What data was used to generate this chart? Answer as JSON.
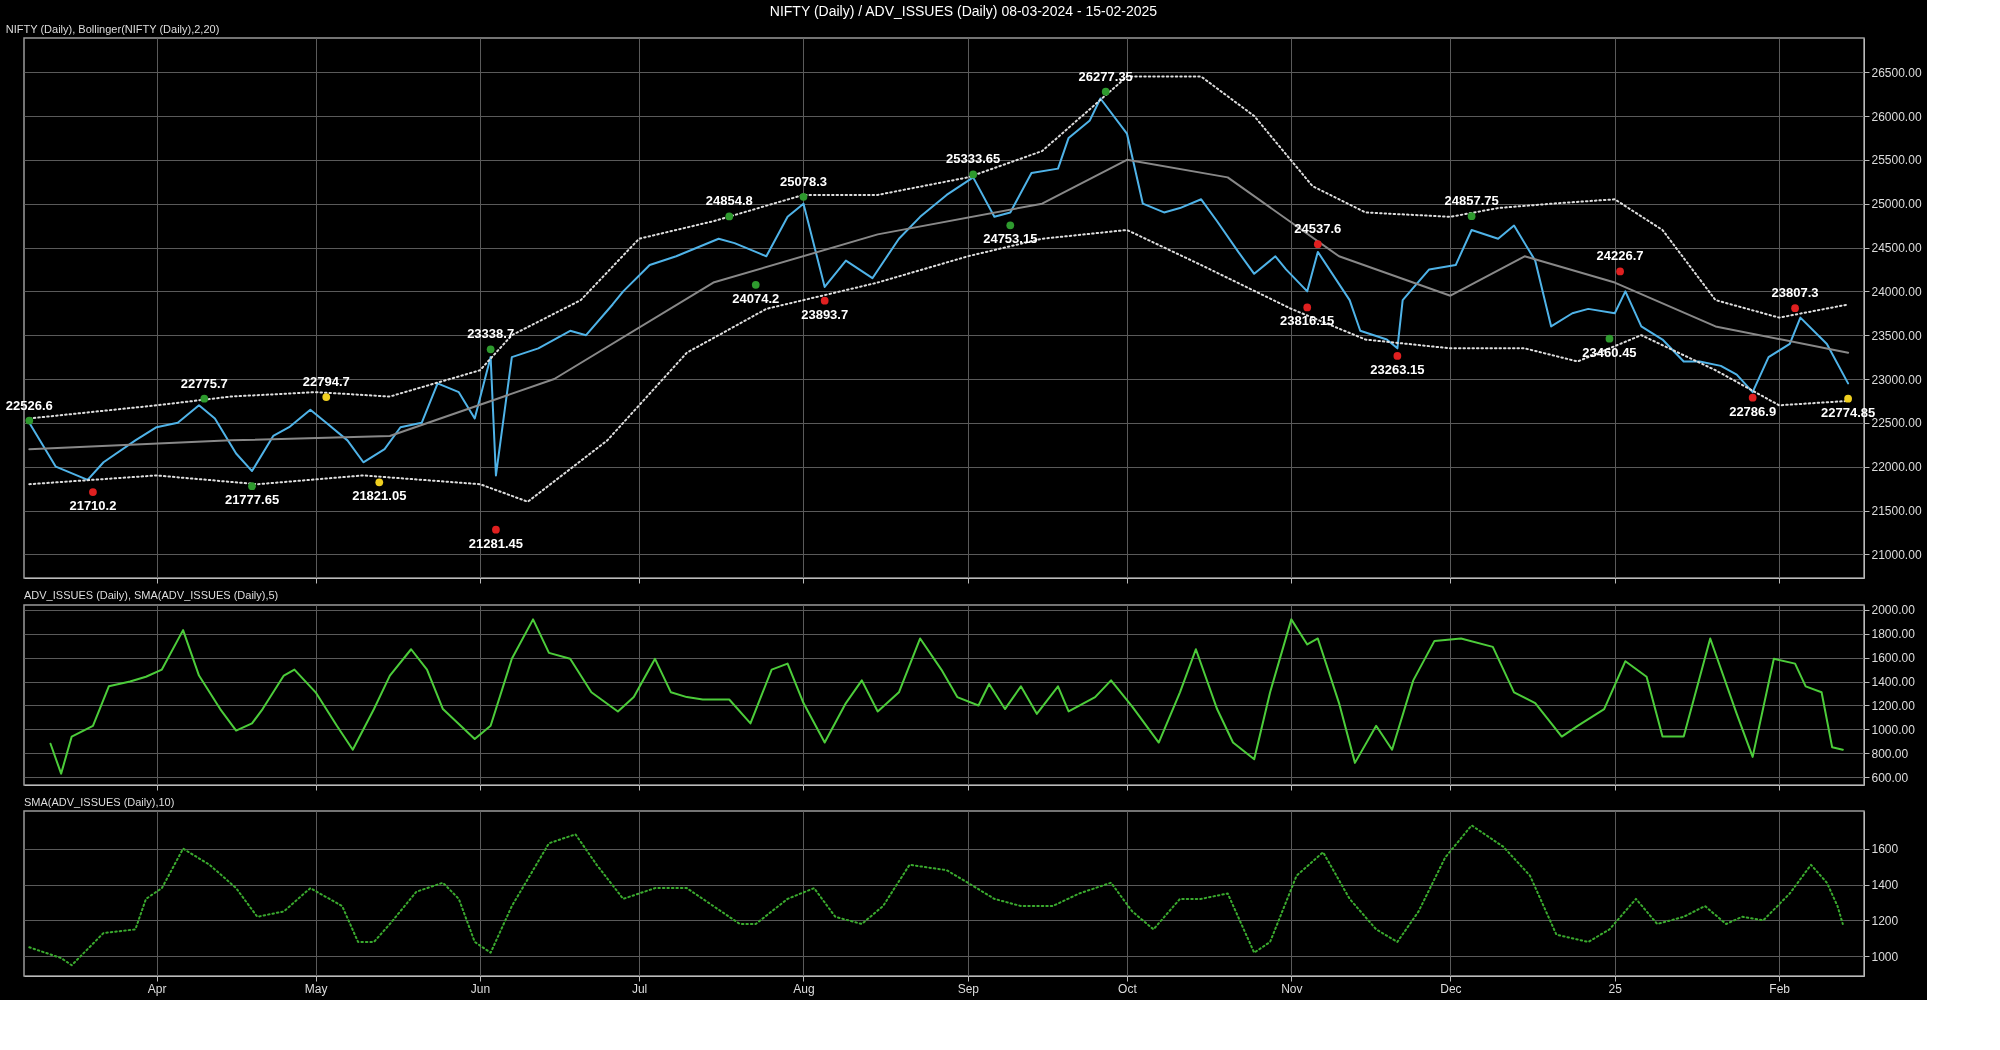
{
  "chart_data": [
    {
      "type": "line",
      "title": "NIFTY (Daily) / ADV_ISSUES (Daily)  08-03-2024 - 15-02-2025",
      "subtitle": "NIFTY (Daily), Bollinger(NIFTY (Daily),2,20)",
      "xlim": [
        "2024-03-07",
        "2025-02-17"
      ],
      "xticks": [
        {
          "value": "2024-04-01",
          "label": null
        },
        {
          "value": "2024-05-01",
          "label": null
        },
        {
          "value": "2024-06-01",
          "label": null
        },
        {
          "value": "2024-07-01",
          "label": null
        },
        {
          "value": "2024-08-01",
          "label": null
        },
        {
          "value": "2024-09-01",
          "label": null
        },
        {
          "value": "2024-10-01",
          "label": null
        },
        {
          "value": "2024-11-01",
          "label": null
        },
        {
          "value": "2024-12-01",
          "label": null
        },
        {
          "value": "2025-01-01",
          "label": null
        },
        {
          "value": "2025-02-01",
          "label": null
        }
      ],
      "ylim": [
        20730,
        26890
      ],
      "yticks": [
        {
          "value": 21000,
          "label": "21000.00"
        },
        {
          "value": 21500,
          "label": "21500.00"
        },
        {
          "value": 22000,
          "label": "22000.00"
        },
        {
          "value": 22500,
          "label": "22500.00"
        },
        {
          "value": 23000,
          "label": "23000.00"
        },
        {
          "value": 23500,
          "label": "23500.00"
        },
        {
          "value": 24000,
          "label": "24000.00"
        },
        {
          "value": 24500,
          "label": "24500.00"
        },
        {
          "value": 25000,
          "label": "25000.00"
        },
        {
          "value": 25500,
          "label": "25500.00"
        },
        {
          "value": 26000,
          "label": "26000.00"
        },
        {
          "value": 26500,
          "label": "26500.00"
        }
      ],
      "grid": true,
      "tick_labels": "y",
      "marker": "none",
      "series": [
        {
          "color": "#4fb3e8",
          "line_style": "solid",
          "x": [
            "2024-03-08",
            "2024-03-13",
            "2024-03-19",
            "2024-03-22",
            "2024-03-28",
            "2024-04-01",
            "2024-04-05",
            "2024-04-09",
            "2024-04-12",
            "2024-04-16",
            "2024-04-19",
            "2024-04-23",
            "2024-04-26",
            "2024-04-30",
            "2024-05-03",
            "2024-05-07",
            "2024-05-10",
            "2024-05-14",
            "2024-05-17",
            "2024-05-21",
            "2024-05-24",
            "2024-05-28",
            "2024-05-31",
            "2024-06-03",
            "2024-06-04",
            "2024-06-07",
            "2024-06-12",
            "2024-06-18",
            "2024-06-21",
            "2024-06-26",
            "2024-06-28",
            "2024-07-03",
            "2024-07-08",
            "2024-07-12",
            "2024-07-16",
            "2024-07-19",
            "2024-07-23",
            "2024-07-25",
            "2024-07-29",
            "2024-08-01",
            "2024-08-05",
            "2024-08-09",
            "2024-08-14",
            "2024-08-19",
            "2024-08-23",
            "2024-08-28",
            "2024-09-02",
            "2024-09-06",
            "2024-09-09",
            "2024-09-13",
            "2024-09-18",
            "2024-09-20",
            "2024-09-24",
            "2024-09-26",
            "2024-10-01",
            "2024-10-04",
            "2024-10-08",
            "2024-10-11",
            "2024-10-15",
            "2024-10-18",
            "2024-10-22",
            "2024-10-25",
            "2024-10-29",
            "2024-10-31",
            "2024-11-04",
            "2024-11-06",
            "2024-11-12",
            "2024-11-14",
            "2024-11-19",
            "2024-11-21",
            "2024-11-22",
            "2024-11-27",
            "2024-12-02",
            "2024-12-05",
            "2024-12-10",
            "2024-12-13",
            "2024-12-17",
            "2024-12-20",
            "2024-12-24",
            "2024-12-27",
            "2025-01-01",
            "2025-01-03",
            "2025-01-06",
            "2025-01-10",
            "2025-01-14",
            "2025-01-17",
            "2025-01-21",
            "2025-01-24",
            "2025-01-27",
            "2025-01-30",
            "2025-02-03",
            "2025-02-05",
            "2025-02-10",
            "2025-02-14"
          ],
          "values": [
            22500,
            22000,
            21850,
            22050,
            22300,
            22450,
            22500,
            22700,
            22550,
            22150,
            21950,
            22350,
            22450,
            22650,
            22500,
            22300,
            22050,
            22200,
            22450,
            22500,
            22950,
            22850,
            22550,
            23250,
            21900,
            23250,
            23350,
            23550,
            23500,
            23850,
            24000,
            24300,
            24400,
            24500,
            24600,
            24550,
            24450,
            24400,
            24850,
            25000,
            24050,
            24350,
            24150,
            24600,
            24850,
            25100,
            25300,
            24850,
            24900,
            25350,
            25400,
            25750,
            25950,
            26200,
            25800,
            25000,
            24900,
            24950,
            25050,
            24800,
            24450,
            24200,
            24400,
            24250,
            24000,
            24450,
            23900,
            23550,
            23450,
            23350,
            23900,
            24250,
            24300,
            24700,
            24600,
            24750,
            24350,
            23600,
            23750,
            23800,
            23750,
            24000,
            23600,
            23450,
            23200,
            23200,
            23150,
            23050,
            22850,
            23250,
            23400,
            23700,
            23400,
            22950
          ]
        },
        {
          "color": "#dddddd",
          "line_style": "dotted",
          "x": [
            "2024-03-08",
            "2024-04-01",
            "2024-04-15",
            "2024-05-01",
            "2024-05-15",
            "2024-06-01",
            "2024-06-07",
            "2024-06-20",
            "2024-07-01",
            "2024-07-15",
            "2024-08-01",
            "2024-08-15",
            "2024-09-01",
            "2024-09-15",
            "2024-10-01",
            "2024-10-15",
            "2024-10-25",
            "2024-11-05",
            "2024-11-15",
            "2024-12-01",
            "2024-12-10",
            "2024-12-20",
            "2025-01-01",
            "2025-01-10",
            "2025-01-20",
            "2025-02-01",
            "2025-02-14"
          ],
          "values": [
            22550,
            22700,
            22800,
            22850,
            22800,
            23100,
            23500,
            23900,
            24600,
            24800,
            25100,
            25100,
            25300,
            25600,
            26450,
            26450,
            26000,
            25200,
            24900,
            24850,
            24950,
            25000,
            25050,
            24700,
            23900,
            23700,
            23850
          ]
        },
        {
          "color": "#888888",
          "line_style": "solid",
          "x": [
            "2024-03-08",
            "2024-04-15",
            "2024-05-15",
            "2024-06-15",
            "2024-07-15",
            "2024-08-15",
            "2024-09-15",
            "2024-10-01",
            "2024-10-20",
            "2024-11-10",
            "2024-12-01",
            "2024-12-15",
            "2025-01-01",
            "2025-01-20",
            "2025-02-14"
          ],
          "values": [
            22200,
            22300,
            22350,
            23000,
            24100,
            24650,
            25000,
            25500,
            25300,
            24400,
            23950,
            24400,
            24100,
            23600,
            23300
          ]
        },
        {
          "color": "#dddddd",
          "line_style": "dotted",
          "x": [
            "2024-03-08",
            "2024-04-01",
            "2024-04-20",
            "2024-05-10",
            "2024-06-01",
            "2024-06-10",
            "2024-06-25",
            "2024-07-10",
            "2024-07-25",
            "2024-08-15",
            "2024-09-01",
            "2024-09-15",
            "2024-10-01",
            "2024-10-15",
            "2024-11-01",
            "2024-11-15",
            "2024-12-01",
            "2024-12-15",
            "2024-12-25",
            "2025-01-06",
            "2025-01-20",
            "2025-02-01",
            "2025-02-14"
          ],
          "values": [
            21800,
            21900,
            21800,
            21900,
            21800,
            21600,
            22300,
            23300,
            23800,
            24100,
            24400,
            24600,
            24700,
            24300,
            23800,
            23450,
            23350,
            23350,
            23200,
            23500,
            23100,
            22700,
            22750
          ]
        },
        {
          "type": "scatter",
          "data_labels": true,
          "marker": "circle",
          "x": [
            "2024-03-08",
            "2024-03-20",
            "2024-04-10",
            "2024-04-19",
            "2024-05-03",
            "2024-05-13",
            "2024-06-03",
            "2024-06-04",
            "2024-07-18",
            "2024-07-23",
            "2024-08-01",
            "2024-08-05",
            "2024-09-02",
            "2024-09-09",
            "2024-09-27",
            "2024-11-04",
            "2024-11-06",
            "2024-11-21",
            "2024-12-05",
            "2024-12-31",
            "2025-01-02",
            "2025-01-27",
            "2025-02-04",
            "2025-02-14"
          ],
          "values": [
            22526.6,
            21710.2,
            22775.7,
            21777.65,
            22794.7,
            21821.05,
            23338.7,
            21281.45,
            24854.8,
            24074.2,
            25078.3,
            23893.7,
            25333.65,
            24753.15,
            26277.35,
            23816.15,
            24537.6,
            23263.15,
            24857.75,
            23460.45,
            24226.7,
            22786.9,
            23807.3,
            22774.85
          ],
          "colors": [
            "#2e9a2e",
            "#e02020",
            "#2e9a2e",
            "#2e9a2e",
            "#f0d020",
            "#f0d020",
            "#2e9a2e",
            "#e02020",
            "#2e9a2e",
            "#2e9a2e",
            "#2e9a2e",
            "#e02020",
            "#2e9a2e",
            "#2e9a2e",
            "#2e9a2e",
            "#e02020",
            "#e02020",
            "#e02020",
            "#2e9a2e",
            "#2e9a2e",
            "#e02020",
            "#e02020",
            "#e02020",
            "#f0d020"
          ]
        }
      ]
    },
    {
      "type": "line",
      "title": "ADV_ISSUES (Daily), SMA(ADV_ISSUES (Daily),5)",
      "xlim": [
        "2024-03-07",
        "2025-02-17"
      ],
      "xticks": [
        {
          "value": "2024-04-01",
          "label": null
        },
        {
          "value": "2024-05-01",
          "label": null
        },
        {
          "value": "2024-06-01",
          "label": null
        },
        {
          "value": "2024-07-01",
          "label": null
        },
        {
          "value": "2024-08-01",
          "label": null
        },
        {
          "value": "2024-09-01",
          "label": null
        },
        {
          "value": "2024-10-01",
          "label": null
        },
        {
          "value": "2024-11-01",
          "label": null
        },
        {
          "value": "2024-12-01",
          "label": null
        },
        {
          "value": "2025-01-01",
          "label": null
        },
        {
          "value": "2025-02-01",
          "label": null
        }
      ],
      "ylim": [
        535,
        2040
      ],
      "yticks": [
        {
          "value": 600,
          "label": "600.00"
        },
        {
          "value": 800,
          "label": "800.00"
        },
        {
          "value": 1000,
          "label": "1000.00"
        },
        {
          "value": 1200,
          "label": "1200.00"
        },
        {
          "value": 1400,
          "label": "1400.00"
        },
        {
          "value": 1600,
          "label": "1600.00"
        },
        {
          "value": 1800,
          "label": "1800.00"
        },
        {
          "value": 2000,
          "label": "2000.00"
        }
      ],
      "grid": true,
      "tick_labels": "y",
      "marker": "none",
      "series": [
        {
          "color": "#4ccc3a",
          "line_style": "solid",
          "x": [
            "2024-03-12",
            "2024-03-14",
            "2024-03-16",
            "2024-03-20",
            "2024-03-23",
            "2024-03-27",
            "2024-03-30",
            "2024-04-02",
            "2024-04-06",
            "2024-04-09",
            "2024-04-13",
            "2024-04-16",
            "2024-04-19",
            "2024-04-21",
            "2024-04-25",
            "2024-04-27",
            "2024-05-01",
            "2024-05-05",
            "2024-05-08",
            "2024-05-12",
            "2024-05-15",
            "2024-05-19",
            "2024-05-22",
            "2024-05-25",
            "2024-05-31",
            "2024-06-03",
            "2024-06-07",
            "2024-06-11",
            "2024-06-14",
            "2024-06-18",
            "2024-06-22",
            "2024-06-27",
            "2024-06-30",
            "2024-07-04",
            "2024-07-07",
            "2024-07-10",
            "2024-07-13",
            "2024-07-18",
            "2024-07-22",
            "2024-07-26",
            "2024-07-29",
            "2024-08-01",
            "2024-08-05",
            "2024-08-09",
            "2024-08-12",
            "2024-08-15",
            "2024-08-19",
            "2024-08-23",
            "2024-08-27",
            "2024-08-30",
            "2024-09-03",
            "2024-09-05",
            "2024-09-08",
            "2024-09-11",
            "2024-09-14",
            "2024-09-18",
            "2024-09-20",
            "2024-09-25",
            "2024-09-28",
            "2024-10-02",
            "2024-10-07",
            "2024-10-11",
            "2024-10-14",
            "2024-10-18",
            "2024-10-21",
            "2024-10-25",
            "2024-10-28",
            "2024-11-01",
            "2024-11-04",
            "2024-11-06",
            "2024-11-10",
            "2024-11-13",
            "2024-11-17",
            "2024-11-20",
            "2024-11-24",
            "2024-11-28",
            "2024-12-03",
            "2024-12-09",
            "2024-12-13",
            "2024-12-17",
            "2024-12-22",
            "2024-12-25",
            "2024-12-30",
            "2025-01-03",
            "2025-01-07",
            "2025-01-10",
            "2025-01-14",
            "2025-01-19",
            "2025-01-24",
            "2025-01-27",
            "2025-01-31",
            "2025-02-04",
            "2025-02-06",
            "2025-02-09",
            "2025-02-11",
            "2025-02-13"
          ],
          "values": [
            880,
            630,
            940,
            1030,
            1360,
            1400,
            1440,
            1500,
            1830,
            1450,
            1170,
            990,
            1050,
            1170,
            1450,
            1500,
            1310,
            1030,
            830,
            1170,
            1450,
            1670,
            1500,
            1170,
            920,
            1030,
            1590,
            1920,
            1640,
            1590,
            1310,
            1150,
            1270,
            1590,
            1310,
            1270,
            1250,
            1250,
            1050,
            1500,
            1550,
            1220,
            890,
            1220,
            1410,
            1150,
            1310,
            1760,
            1500,
            1270,
            1200,
            1380,
            1170,
            1360,
            1130,
            1360,
            1150,
            1270,
            1410,
            1190,
            890,
            1310,
            1670,
            1170,
            890,
            750,
            1310,
            1920,
            1710,
            1760,
            1220,
            720,
            1030,
            830,
            1410,
            1740,
            1760,
            1690,
            1310,
            1220,
            940,
            1030,
            1170,
            1570,
            1440,
            940,
            940,
            1760,
            1130,
            770,
            1590,
            1550,
            1360,
            1310,
            850,
            830
          ]
        }
      ]
    },
    {
      "type": "line",
      "title": "SMA(ADV_ISSUES (Daily),10)",
      "xlim": [
        "2024-03-07",
        "2025-02-17"
      ],
      "xticks": [
        {
          "value": "2024-04-01",
          "label": "Apr"
        },
        {
          "value": "2024-05-01",
          "label": "May"
        },
        {
          "value": "2024-06-01",
          "label": "Jun"
        },
        {
          "value": "2024-07-01",
          "label": "Jul"
        },
        {
          "value": "2024-08-01",
          "label": "Aug"
        },
        {
          "value": "2024-09-01",
          "label": "Sep"
        },
        {
          "value": "2024-10-01",
          "label": "Oct"
        },
        {
          "value": "2024-11-01",
          "label": "Nov"
        },
        {
          "value": "2024-12-01",
          "label": "Dec"
        },
        {
          "value": "2025-01-01",
          "label": "25"
        },
        {
          "value": "2025-02-01",
          "label": "Feb"
        }
      ],
      "ylim": [
        890,
        1810
      ],
      "yticks": [
        1000,
        1200,
        1400,
        1600
      ],
      "grid": true,
      "marker": "none",
      "series": [
        {
          "color": "#3aaa2e",
          "line_style": "dotted",
          "x": [
            "2024-03-08",
            "2024-03-14",
            "2024-03-16",
            "2024-03-22",
            "2024-03-28",
            "2024-03-30",
            "2024-04-02",
            "2024-04-06",
            "2024-04-11",
            "2024-04-16",
            "2024-04-20",
            "2024-04-25",
            "2024-04-30",
            "2024-05-06",
            "2024-05-09",
            "2024-05-12",
            "2024-05-15",
            "2024-05-20",
            "2024-05-25",
            "2024-05-28",
            "2024-05-31",
            "2024-06-03",
            "2024-06-07",
            "2024-06-14",
            "2024-06-19",
            "2024-06-23",
            "2024-06-28",
            "2024-07-04",
            "2024-07-10",
            "2024-07-13",
            "2024-07-20",
            "2024-07-23",
            "2024-07-29",
            "2024-08-03",
            "2024-08-07",
            "2024-08-12",
            "2024-08-16",
            "2024-08-21",
            "2024-08-28",
            "2024-09-01",
            "2024-09-06",
            "2024-09-11",
            "2024-09-17",
            "2024-09-22",
            "2024-09-28",
            "2024-10-02",
            "2024-10-06",
            "2024-10-11",
            "2024-10-15",
            "2024-10-20",
            "2024-10-25",
            "2024-10-28",
            "2024-11-02",
            "2024-11-07",
            "2024-11-12",
            "2024-11-17",
            "2024-11-21",
            "2024-11-25",
            "2024-11-30",
            "2024-12-05",
            "2024-12-11",
            "2024-12-16",
            "2024-12-21",
            "2024-12-27",
            "2024-12-31",
            "2025-01-05",
            "2025-01-09",
            "2025-01-14",
            "2025-01-18",
            "2025-01-22",
            "2025-01-25",
            "2025-01-29",
            "2025-02-03",
            "2025-02-07",
            "2025-02-10",
            "2025-02-12",
            "2025-02-13"
          ],
          "values": [
            1050,
            990,
            950,
            1130,
            1150,
            1320,
            1380,
            1600,
            1510,
            1380,
            1220,
            1250,
            1380,
            1280,
            1080,
            1080,
            1180,
            1360,
            1410,
            1320,
            1080,
            1020,
            1280,
            1630,
            1680,
            1510,
            1320,
            1380,
            1380,
            1320,
            1180,
            1180,
            1320,
            1380,
            1220,
            1180,
            1280,
            1510,
            1480,
            1410,
            1320,
            1280,
            1280,
            1350,
            1410,
            1250,
            1150,
            1320,
            1320,
            1350,
            1020,
            1080,
            1450,
            1580,
            1320,
            1150,
            1080,
            1250,
            1550,
            1730,
            1610,
            1450,
            1120,
            1080,
            1150,
            1320,
            1180,
            1220,
            1280,
            1180,
            1220,
            1200,
            1350,
            1510,
            1410,
            1280,
            1180
          ]
        }
      ]
    }
  ]
}
